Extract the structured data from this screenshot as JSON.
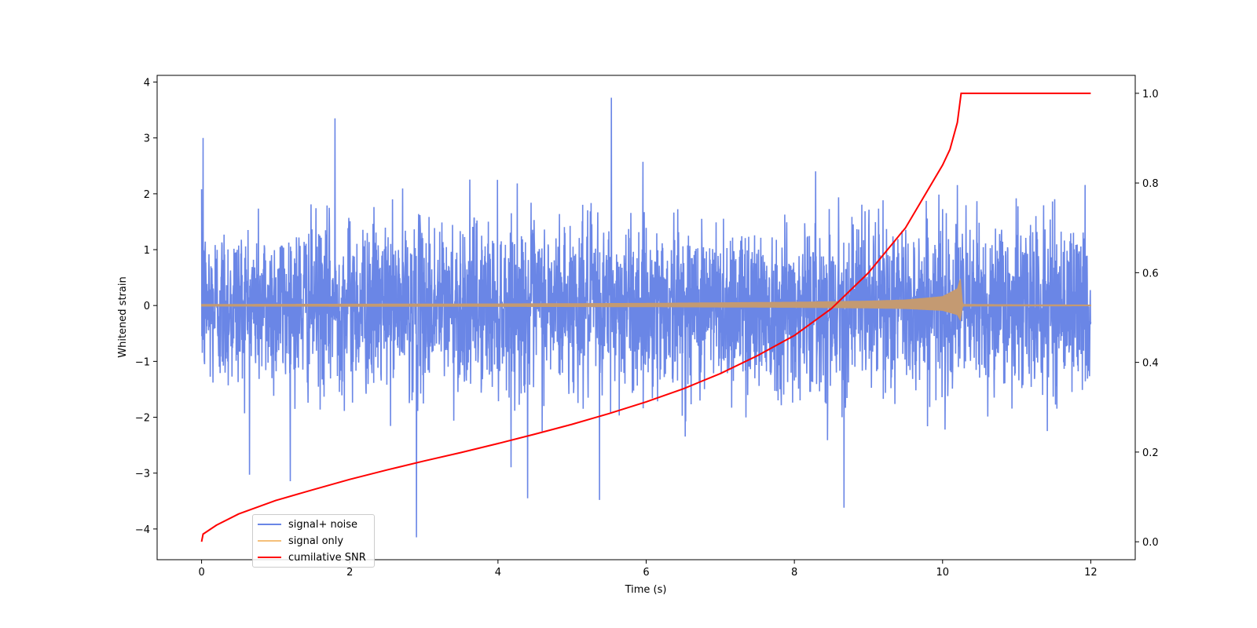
{
  "chart_data": {
    "type": "line",
    "xlabel": "Time (s)",
    "ylabel": "Whitened strain",
    "y2label": "",
    "xlim": [
      -0.6,
      12.6
    ],
    "ylim": [
      -4.55,
      4.12
    ],
    "y2lim": [
      -0.04,
      1.04
    ],
    "xticks": [
      0,
      2,
      4,
      6,
      8,
      10,
      12
    ],
    "yticks": [
      -4,
      -3,
      -2,
      -1,
      0,
      1,
      2,
      3,
      4
    ],
    "y2ticks": [
      0.0,
      0.2,
      0.4,
      0.6,
      0.8,
      1.0
    ],
    "xtick_labels": [
      "0",
      "2",
      "4",
      "6",
      "8",
      "10",
      "12"
    ],
    "ytick_labels": [
      "−4",
      "−3",
      "−2",
      "−1",
      "0",
      "1",
      "2",
      "3",
      "4"
    ],
    "y2tick_labels": [
      "0.0",
      "0.2",
      "0.4",
      "0.6",
      "0.8",
      "1.0"
    ],
    "legend_position": "lower-left",
    "series": [
      {
        "name": "signal+ noise",
        "color": "#6a86e6",
        "axis": "left",
        "kind": "noise",
        "x_range": [
          0,
          12
        ],
        "approx_std": 0.75,
        "approx_range": [
          -4.15,
          3.72
        ],
        "notable_peaks": [
          [
            0.02,
            3.0
          ],
          [
            1.8,
            3.35
          ],
          [
            5.53,
            3.72
          ],
          [
            2.9,
            -4.15
          ],
          [
            8.67,
            -3.62
          ],
          [
            4.4,
            -3.45
          ],
          [
            5.37,
            -3.48
          ]
        ]
      },
      {
        "name": "signal only",
        "color": "#f5c07a",
        "axis": "left",
        "kind": "chirp",
        "x_range": [
          0,
          12
        ],
        "merger_time": 10.25,
        "envelope": [
          [
            0,
            0.02
          ],
          [
            2,
            0.025
          ],
          [
            4,
            0.03
          ],
          [
            6,
            0.04
          ],
          [
            8,
            0.06
          ],
          [
            9,
            0.08
          ],
          [
            9.5,
            0.1
          ],
          [
            10,
            0.16
          ],
          [
            10.2,
            0.3
          ],
          [
            10.24,
            0.48
          ],
          [
            10.27,
            0.02
          ],
          [
            12,
            0.01
          ]
        ]
      },
      {
        "name": "cumilative SNR",
        "color": "#ff0000",
        "axis": "right",
        "kind": "line",
        "x": [
          0,
          0.02,
          0.2,
          0.5,
          1,
          1.5,
          2,
          2.5,
          3,
          3.5,
          4,
          4.5,
          5,
          5.5,
          6,
          6.5,
          7,
          7.5,
          8,
          8.5,
          9,
          9.5,
          10,
          10.1,
          10.2,
          10.25,
          12
        ],
        "values": [
          0.0,
          0.017,
          0.037,
          0.062,
          0.092,
          0.116,
          0.139,
          0.16,
          0.18,
          0.199,
          0.219,
          0.24,
          0.262,
          0.286,
          0.312,
          0.341,
          0.375,
          0.415,
          0.46,
          0.52,
          0.6,
          0.7,
          0.84,
          0.875,
          0.935,
          1.0,
          1.0
        ]
      }
    ]
  }
}
